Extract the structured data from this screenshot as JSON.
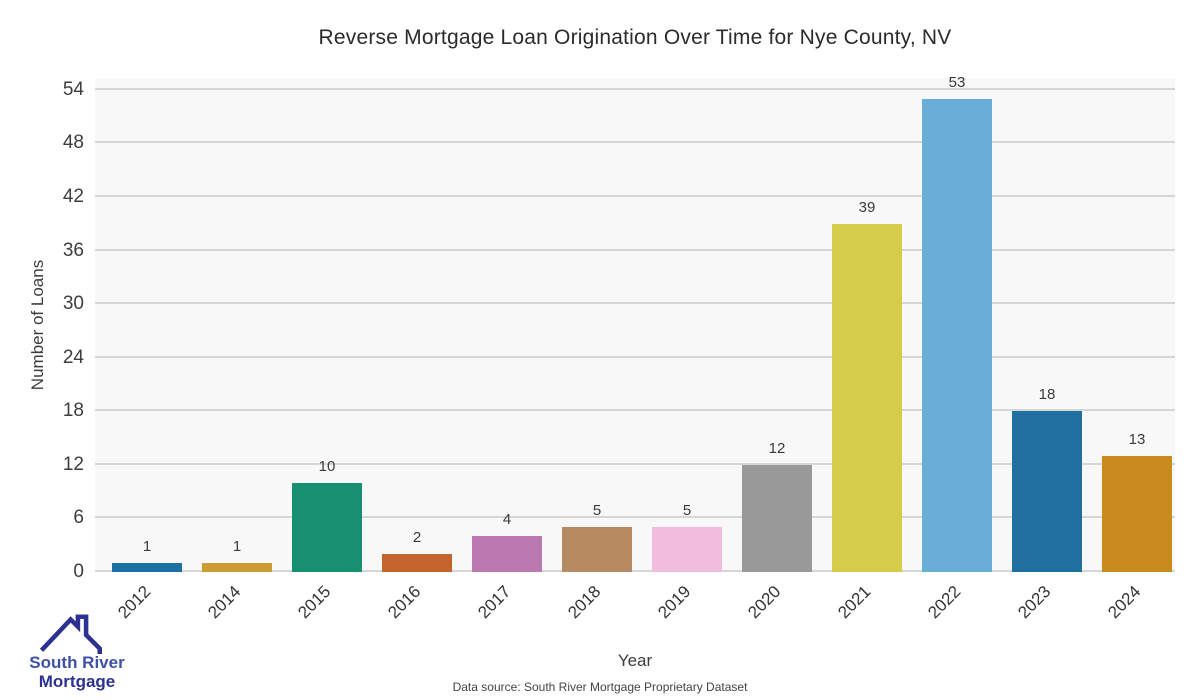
{
  "title": "Reverse Mortgage Loan Origination Over Time for Nye County, NV",
  "chart_data": {
    "type": "bar",
    "title": "Reverse Mortgage Loan Origination Over Time for Nye County, NV",
    "xlabel": "Year",
    "ylabel": "Number of Loans",
    "categories": [
      "2012",
      "2014",
      "2015",
      "2016",
      "2017",
      "2018",
      "2019",
      "2020",
      "2021",
      "2022",
      "2023",
      "2024"
    ],
    "values": [
      1,
      1,
      10,
      2,
      4,
      5,
      5,
      12,
      39,
      53,
      18,
      13
    ],
    "bar_colors": [
      "#1d70a6",
      "#cc9c33",
      "#18906f",
      "#c2642c",
      "#bb79b0",
      "#b68b62",
      "#f2bcdf",
      "#999999",
      "#d4cc4a",
      "#68aed8",
      "#1f6fa0",
      "#ca8b1e"
    ],
    "value_labels": [
      1,
      1,
      10,
      2,
      4,
      5,
      5,
      12,
      39,
      53,
      18,
      13
    ],
    "yticks": [
      0,
      6,
      12,
      18,
      24,
      30,
      36,
      42,
      48,
      54
    ],
    "ylim": [
      0,
      55.3
    ],
    "grid": "horizontal",
    "legend": "none",
    "plot_background": "#f8f8f8",
    "gridline_color": "#d6d6d6"
  },
  "footer": {
    "source_note": "Data source: South River Mortgage Proprietary Dataset"
  },
  "logo": {
    "line1": "South River",
    "line2": "Mortgage",
    "line1_color": "#3f51a5",
    "line2_color": "#2d3192",
    "icon_color": "#2d3192"
  }
}
